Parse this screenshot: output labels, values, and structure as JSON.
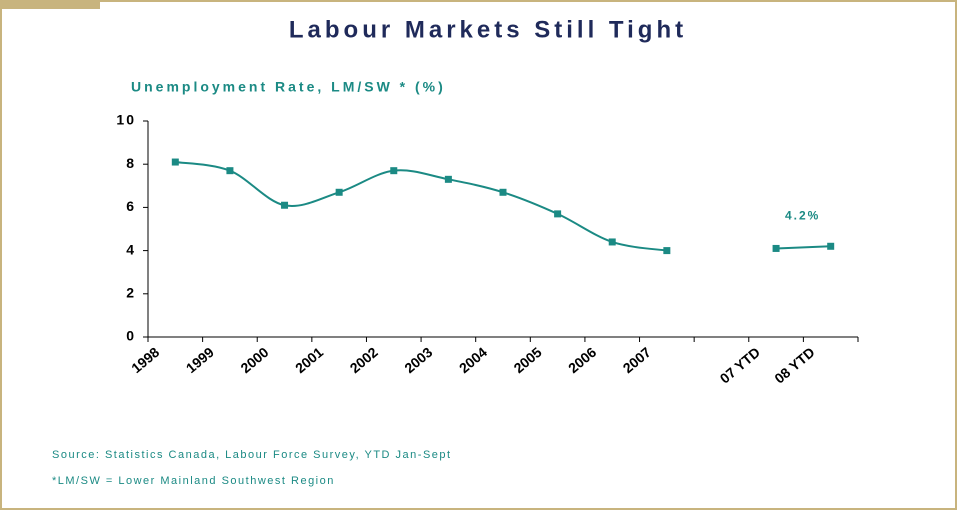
{
  "chart_data": {
    "type": "line",
    "title": "Labour Markets Still Tight",
    "subtitle": "Unemployment Rate, LM/SW * (%)",
    "categories": [
      "1998",
      "1999",
      "2000",
      "2001",
      "2002",
      "2003",
      "2004",
      "2005",
      "2006",
      "2007",
      null,
      "07 YTD",
      "08 YTD"
    ],
    "series": [
      {
        "name": "Unemployment Rate",
        "color": "#1b8a84",
        "values": [
          8.1,
          7.7,
          6.1,
          6.7,
          7.7,
          7.3,
          6.7,
          5.7,
          4.4,
          4.0,
          null,
          4.1,
          4.2
        ],
        "value_labels": [
          null,
          null,
          null,
          null,
          null,
          null,
          null,
          null,
          null,
          null,
          null,
          null,
          "4.2%"
        ]
      }
    ],
    "ylim": [
      0,
      10
    ],
    "yticks": [
      0,
      2,
      4,
      6,
      8,
      10
    ],
    "notes": [
      "Source:  Statistics Canada, Labour Force Survey, YTD Jan-Sept",
      "*LM/SW  =  Lower Mainland Southwest Region"
    ]
  }
}
